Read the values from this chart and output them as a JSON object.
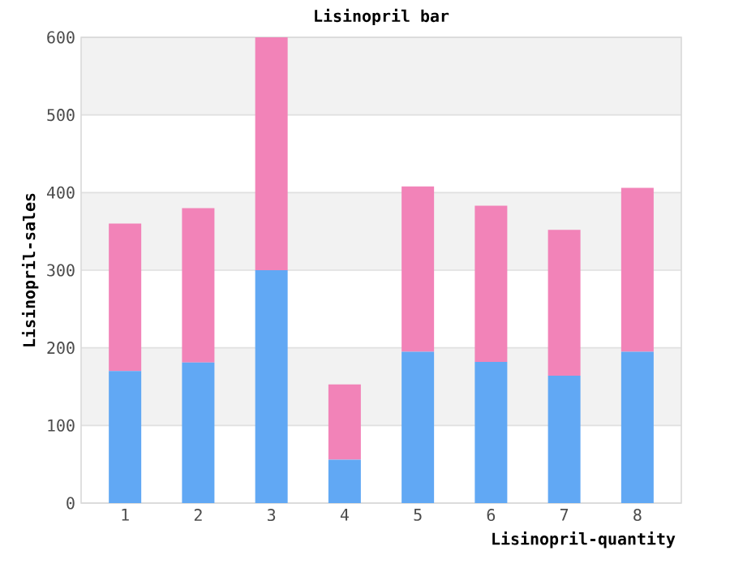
{
  "chart_data": {
    "type": "bar",
    "title": "Lisinopril bar",
    "xlabel": "Lisinopril-quantity",
    "ylabel": "Lisinopril-sales",
    "categories": [
      "1",
      "2",
      "3",
      "4",
      "5",
      "6",
      "7",
      "8"
    ],
    "stacked": true,
    "series": [
      {
        "color": "#61a8f4",
        "values": [
          170,
          181,
          300,
          56,
          195,
          182,
          164,
          195
        ]
      },
      {
        "color": "#f283b8",
        "values": [
          190,
          199,
          300,
          97,
          213,
          201,
          188,
          211
        ]
      }
    ],
    "ylim": [
      0,
      600
    ],
    "yticks": [
      0,
      100,
      200,
      300,
      400,
      500,
      600
    ],
    "grid": "y"
  }
}
